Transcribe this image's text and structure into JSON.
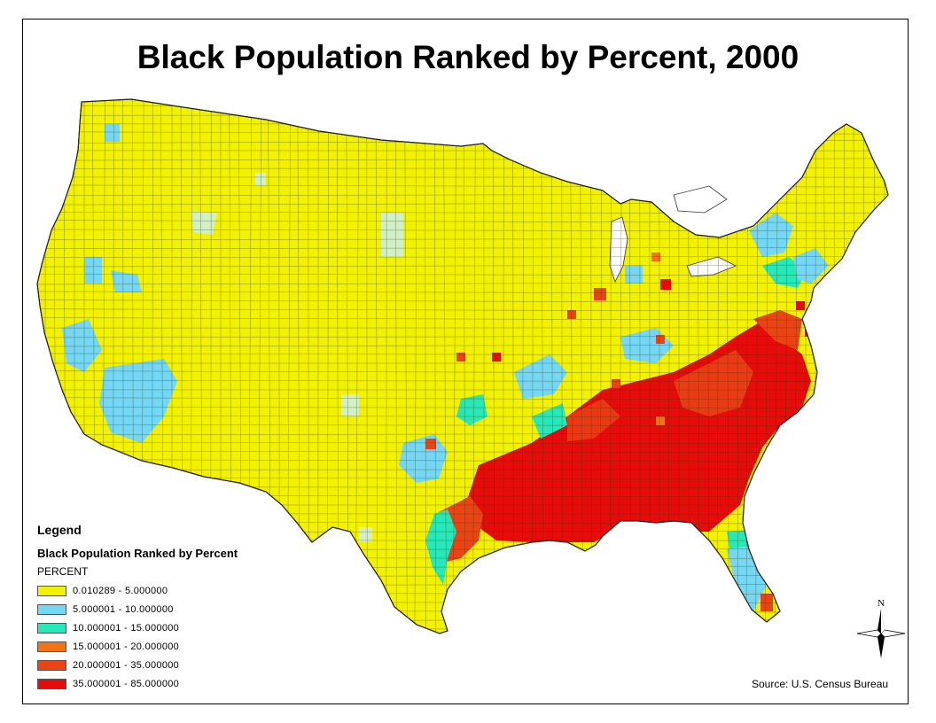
{
  "title": "Black Population Ranked by Percent, 2000",
  "legend": {
    "heading": "Legend",
    "layer_name": "Black Population Ranked by Percent",
    "field_name": "PERCENT",
    "classes": [
      {
        "label": "0.010289 - 5.000000",
        "color": "#f2f200"
      },
      {
        "label": "5.000001 - 10.000000",
        "color": "#73d7f5"
      },
      {
        "label": "10.000001 - 15.000000",
        "color": "#27e8b9"
      },
      {
        "label": "15.000001 - 20.000000",
        "color": "#f47316"
      },
      {
        "label": "20.000001 - 35.000000",
        "color": "#ea4416"
      },
      {
        "label": "35.000001 - 85.000000",
        "color": "#e80b0b"
      }
    ]
  },
  "source": "Source: U.S. Census Bureau",
  "north_arrow": {
    "label": "N",
    "icon": "compass-rose-icon"
  },
  "colors": {
    "background": "#ffffff",
    "county_border": "#3a3a00",
    "water_hint": "#d2f0c8"
  }
}
